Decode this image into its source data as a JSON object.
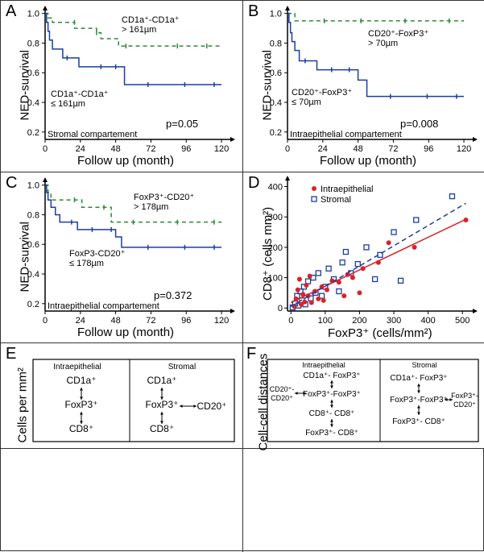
{
  "panelA": {
    "label": "A",
    "ylabel": "NED-survival",
    "xlabel": "Follow up (month)",
    "upper_text": "CD1a⁺-CD1a⁺\n> 161µm",
    "lower_text": "CD1a⁺-CD1a⁺\n≤ 161µm",
    "compartment": "Stromal compartement",
    "p_text": "p=0.05",
    "xticks": [
      0,
      24,
      48,
      72,
      96,
      120
    ],
    "yticks": [
      0.2,
      0.4,
      0.6,
      0.8,
      1.0
    ],
    "xlim": [
      0,
      126
    ],
    "ylim": [
      0.15,
      1.02
    ],
    "upper_color": "#2a8a3a",
    "lower_color": "#1a3f9e",
    "upper_dash": "5,4",
    "lower_dash": "none",
    "upper_points": [
      [
        0,
        1.0
      ],
      [
        2,
        0.97
      ],
      [
        5,
        0.94
      ],
      [
        10,
        0.94
      ],
      [
        20,
        0.9
      ],
      [
        30,
        0.9
      ],
      [
        35,
        0.87
      ],
      [
        38,
        0.83
      ],
      [
        45,
        0.83
      ],
      [
        50,
        0.78
      ],
      [
        60,
        0.78
      ],
      [
        70,
        0.78
      ],
      [
        80,
        0.78
      ],
      [
        90,
        0.78
      ],
      [
        110,
        0.78
      ],
      [
        120,
        0.78
      ]
    ],
    "lower_points": [
      [
        0,
        1.0
      ],
      [
        1,
        0.94
      ],
      [
        2,
        0.88
      ],
      [
        3,
        0.82
      ],
      [
        5,
        0.76
      ],
      [
        8,
        0.76
      ],
      [
        12,
        0.7
      ],
      [
        18,
        0.7
      ],
      [
        23,
        0.64
      ],
      [
        30,
        0.64
      ],
      [
        40,
        0.64
      ],
      [
        54,
        0.52
      ],
      [
        60,
        0.52
      ],
      [
        70,
        0.52
      ],
      [
        90,
        0.52
      ],
      [
        110,
        0.52
      ],
      [
        120,
        0.52
      ]
    ],
    "upper_ticks": [
      [
        20,
        0.94
      ],
      [
        35,
        0.87
      ],
      [
        55,
        0.78
      ],
      [
        90,
        0.78
      ],
      [
        110,
        0.78
      ]
    ],
    "lower_ticks": [
      [
        15,
        0.7
      ],
      [
        38,
        0.64
      ],
      [
        48,
        0.64
      ],
      [
        70,
        0.52
      ],
      [
        95,
        0.52
      ],
      [
        115,
        0.52
      ]
    ]
  },
  "panelB": {
    "label": "B",
    "ylabel": "NED-survival",
    "xlabel": "Follow up (month)",
    "upper_text": "CD20⁺-FoxP3⁺\n> 70µm",
    "lower_text": "CD20⁺-FoxP3⁺\n≤ 70µm",
    "compartment": "Intraepithelial compartement",
    "p_text": "p=0.008",
    "xticks": [
      0,
      24,
      48,
      72,
      96,
      120
    ],
    "yticks": [
      0.2,
      0.4,
      0.6,
      0.8,
      1.0
    ],
    "xlim": [
      0,
      126
    ],
    "ylim": [
      0.15,
      1.02
    ],
    "upper_color": "#2a8a3a",
    "lower_color": "#1a3f9e",
    "upper_dash": "5,4",
    "lower_dash": "none",
    "upper_points": [
      [
        0,
        1.0
      ],
      [
        5,
        0.95
      ],
      [
        10,
        0.95
      ],
      [
        20,
        0.95
      ],
      [
        40,
        0.95
      ],
      [
        60,
        0.95
      ],
      [
        80,
        0.95
      ],
      [
        100,
        0.95
      ],
      [
        120,
        0.95
      ]
    ],
    "lower_points": [
      [
        0,
        1.0
      ],
      [
        1,
        0.94
      ],
      [
        2,
        0.87
      ],
      [
        3,
        0.81
      ],
      [
        5,
        0.75
      ],
      [
        8,
        0.68
      ],
      [
        15,
        0.68
      ],
      [
        20,
        0.62
      ],
      [
        28,
        0.62
      ],
      [
        40,
        0.62
      ],
      [
        48,
        0.55
      ],
      [
        54,
        0.44
      ],
      [
        60,
        0.44
      ],
      [
        80,
        0.44
      ],
      [
        100,
        0.44
      ],
      [
        120,
        0.44
      ]
    ],
    "upper_ticks": [
      [
        25,
        0.95
      ],
      [
        50,
        0.95
      ],
      [
        80,
        0.95
      ],
      [
        110,
        0.95
      ]
    ],
    "lower_ticks": [
      [
        12,
        0.68
      ],
      [
        30,
        0.62
      ],
      [
        42,
        0.62
      ],
      [
        70,
        0.44
      ],
      [
        95,
        0.44
      ],
      [
        115,
        0.44
      ]
    ]
  },
  "panelC": {
    "label": "C",
    "ylabel": "NED-survival",
    "xlabel": "Follow up (month)",
    "upper_text": "FoxP3⁺-CD20⁺\n> 178µm",
    "lower_text": "FoxP3-CD20⁺\n≤ 178µm",
    "compartment": "Intraepithelial compartement",
    "p_text": "p=0.372",
    "xticks": [
      0,
      24,
      48,
      72,
      96,
      120
    ],
    "yticks": [
      0.2,
      0.4,
      0.6,
      0.8,
      1.0
    ],
    "xlim": [
      0,
      126
    ],
    "ylim": [
      0.15,
      1.02
    ],
    "upper_color": "#2a8a3a",
    "lower_color": "#1a3f9e",
    "upper_dash": "5,4",
    "lower_dash": "none",
    "upper_points": [
      [
        0,
        1.0
      ],
      [
        2,
        0.95
      ],
      [
        4,
        0.9
      ],
      [
        10,
        0.9
      ],
      [
        20,
        0.9
      ],
      [
        25,
        0.85
      ],
      [
        35,
        0.85
      ],
      [
        45,
        0.75
      ],
      [
        55,
        0.75
      ],
      [
        70,
        0.75
      ],
      [
        90,
        0.75
      ],
      [
        110,
        0.75
      ],
      [
        120,
        0.75
      ]
    ],
    "lower_points": [
      [
        0,
        1.0
      ],
      [
        1,
        0.95
      ],
      [
        2,
        0.9
      ],
      [
        4,
        0.85
      ],
      [
        7,
        0.8
      ],
      [
        10,
        0.75
      ],
      [
        15,
        0.75
      ],
      [
        22,
        0.7
      ],
      [
        30,
        0.7
      ],
      [
        40,
        0.7
      ],
      [
        48,
        0.65
      ],
      [
        52,
        0.58
      ],
      [
        60,
        0.58
      ],
      [
        80,
        0.58
      ],
      [
        100,
        0.58
      ],
      [
        120,
        0.58
      ]
    ],
    "upper_ticks": [
      [
        20,
        0.9
      ],
      [
        40,
        0.85
      ],
      [
        60,
        0.75
      ],
      [
        90,
        0.75
      ],
      [
        115,
        0.75
      ]
    ],
    "lower_ticks": [
      [
        18,
        0.75
      ],
      [
        32,
        0.7
      ],
      [
        45,
        0.7
      ],
      [
        70,
        0.58
      ],
      [
        95,
        0.58
      ],
      [
        115,
        0.58
      ]
    ]
  },
  "panelD": {
    "label": "D",
    "ylabel": "CD8⁺ (cells mm²)",
    "xlabel": "FoxP3⁺ (cells/mm²)",
    "xticks": [
      0,
      100,
      200,
      300,
      400,
      500
    ],
    "yticks": [
      0,
      100,
      200,
      300,
      400
    ],
    "xlim": [
      -10,
      530
    ],
    "ylim": [
      -10,
      420
    ],
    "legend": [
      {
        "label": "Intraepithelial",
        "marker": "circle",
        "color": "#d8232a"
      },
      {
        "label": "Stromal",
        "marker": "square",
        "color": "#1a3f9e"
      }
    ],
    "red_points": [
      [
        10,
        5
      ],
      [
        15,
        30
      ],
      [
        20,
        60
      ],
      [
        25,
        95
      ],
      [
        30,
        12
      ],
      [
        35,
        45
      ],
      [
        40,
        20
      ],
      [
        45,
        75
      ],
      [
        50,
        40
      ],
      [
        55,
        105
      ],
      [
        60,
        18
      ],
      [
        70,
        55
      ],
      [
        80,
        30
      ],
      [
        90,
        70
      ],
      [
        95,
        25
      ],
      [
        105,
        60
      ],
      [
        120,
        90
      ],
      [
        140,
        85
      ],
      [
        155,
        40
      ],
      [
        165,
        110
      ],
      [
        180,
        100
      ],
      [
        200,
        50
      ],
      [
        210,
        130
      ],
      [
        255,
        150
      ],
      [
        285,
        215
      ],
      [
        360,
        200
      ],
      [
        510,
        290
      ]
    ],
    "blue_points": [
      [
        5,
        2
      ],
      [
        12,
        15
      ],
      [
        18,
        40
      ],
      [
        22,
        8
      ],
      [
        28,
        55
      ],
      [
        32,
        25
      ],
      [
        38,
        70
      ],
      [
        42,
        12
      ],
      [
        50,
        88
      ],
      [
        58,
        32
      ],
      [
        65,
        100
      ],
      [
        72,
        50
      ],
      [
        80,
        115
      ],
      [
        90,
        40
      ],
      [
        100,
        70
      ],
      [
        110,
        130
      ],
      [
        125,
        95
      ],
      [
        140,
        55
      ],
      [
        150,
        150
      ],
      [
        160,
        185
      ],
      [
        175,
        115
      ],
      [
        195,
        145
      ],
      [
        220,
        200
      ],
      [
        245,
        95
      ],
      [
        260,
        175
      ],
      [
        300,
        250
      ],
      [
        320,
        90
      ],
      [
        365,
        290
      ],
      [
        470,
        368
      ]
    ],
    "red_line": {
      "p1": [
        0,
        18
      ],
      "p2": [
        510,
        292
      ],
      "dash": "none",
      "color": "#d8232a"
    },
    "blue_line": {
      "p1": [
        0,
        5
      ],
      "p2": [
        510,
        345
      ],
      "dash": "6,4",
      "color": "#1a3f9e"
    }
  },
  "panelE": {
    "label": "E",
    "ylabel": "Cells per mm²",
    "col1_header": "Intraepithelial",
    "col2_header": "Stromal",
    "col1_items": [
      "CD1a⁺",
      "FoxP3⁺",
      "CD8⁺"
    ],
    "col2_left": [
      "CD1a⁺",
      "FoxP3⁺",
      "CD8⁺"
    ],
    "col2_right": "CD20⁺"
  },
  "panelF": {
    "label": "F",
    "ylabel": "Cell-cell distances",
    "col1_header": "Intraepithelial",
    "col2_header": "Stromal",
    "col1_top": "CD1a⁺- FoxP3⁺",
    "col1_left": "CD20⁺-\nCD20⁺",
    "col1_mid": "FoxP3⁺-FoxP3⁺",
    "col1_below": "CD8⁺- CD8⁺",
    "col1_bottom": "FoxP3⁺- CD8⁺",
    "col2_top": "CD1a⁺- FoxP3⁺",
    "col2_mid": "FoxP3⁺-FoxP3⁺",
    "col2_right": "FoxP3⁺-\nCD20⁺",
    "col2_bottom": "FoxP3⁺- CD8⁺"
  },
  "colors": {
    "axis": "#000000",
    "border": "#333333"
  }
}
